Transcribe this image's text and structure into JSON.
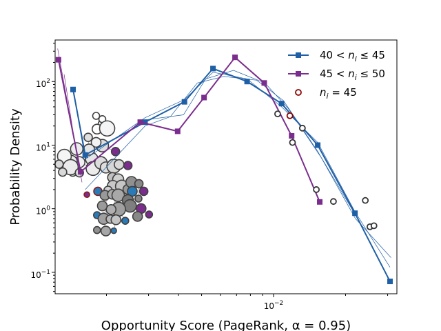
{
  "chart_data": {
    "type": "line",
    "xlabel": "Opportunity Score (PageRank, α = 0.95)",
    "ylabel": "Probability Density",
    "xscale": "log",
    "yscale": "log",
    "xlim": [
      0.00122,
      0.0328
    ],
    "ylim": [
      0.046,
      450
    ],
    "x_tick_labels": [
      {
        "value": 0.01,
        "base": "10",
        "exp": "−2"
      }
    ],
    "y_tick_labels": [
      {
        "value": 0.1,
        "base": "10",
        "exp": "−1"
      },
      {
        "value": 1,
        "base": "10",
        "exp": "0"
      },
      {
        "value": 10,
        "base": "10",
        "exp": "1"
      },
      {
        "value": 100,
        "base": "10",
        "exp": "2"
      }
    ],
    "legend_position": "top-right",
    "grid": false,
    "series": [
      {
        "name": "40 < n_i ≤ 45",
        "legend_parts": {
          "pre": "40 < ",
          "var": "n",
          "sub": "i",
          "post": " ≤ 45"
        },
        "color": "#1f5fa6",
        "marker": "square",
        "points": [
          [
            0.00145,
            75
          ],
          [
            0.00163,
            7
          ],
          [
            0.0029,
            23
          ],
          [
            0.00424,
            48
          ],
          [
            0.00558,
            160
          ],
          [
            0.00775,
            100
          ],
          [
            0.0108,
            45
          ],
          [
            0.0153,
            10
          ],
          [
            0.0219,
            0.85
          ],
          [
            0.0307,
            0.072
          ]
        ]
      },
      {
        "name": "45 < n_i ≤ 50",
        "legend_parts": {
          "pre": "45 < ",
          "var": "n",
          "sub": "i",
          "post": " ≤ 50"
        },
        "color": "#7b2d8e",
        "marker": "square",
        "points": [
          [
            0.00126,
            220
          ],
          [
            0.00156,
            3.8
          ],
          [
            0.00277,
            23
          ],
          [
            0.00397,
            16.5
          ],
          [
            0.00512,
            56
          ],
          [
            0.0069,
            240
          ],
          [
            0.00914,
            95
          ],
          [
            0.0119,
            14
          ],
          [
            0.0156,
            1.28
          ]
        ]
      },
      {
        "name": "n_i = 45",
        "legend_parts": {
          "pre": "",
          "var": "n",
          "sub": "i",
          "post": " = 45"
        },
        "color": "#333333",
        "highlight_color": "#8b0000",
        "marker": "open-circle",
        "points": [
          [
            0.0104,
            31
          ],
          [
            0.0117,
            29
          ],
          [
            0.012,
            11
          ],
          [
            0.0132,
            18.5
          ],
          [
            0.0151,
            2
          ],
          [
            0.0178,
            1.3
          ],
          [
            0.0242,
            1.35
          ],
          [
            0.0253,
            0.52
          ],
          [
            0.0263,
            0.54
          ]
        ]
      }
    ],
    "thin_lines": [
      {
        "color": "#1f5fa6",
        "points": [
          [
            0.00145,
            75
          ],
          [
            0.00163,
            6
          ],
          [
            0.0029,
            27
          ],
          [
            0.00424,
            52
          ],
          [
            0.00558,
            140
          ],
          [
            0.00775,
            110
          ],
          [
            0.0108,
            40
          ],
          [
            0.0153,
            11
          ],
          [
            0.0219,
            0.9
          ],
          [
            0.0307,
            0.12
          ]
        ]
      },
      {
        "color": "#1f5fa6",
        "points": [
          [
            0.00163,
            2
          ],
          [
            0.0029,
            20
          ],
          [
            0.0037,
            28
          ],
          [
            0.0048,
            95
          ],
          [
            0.0062,
            120
          ],
          [
            0.0085,
            105
          ],
          [
            0.011,
            50
          ],
          [
            0.0153,
            8
          ],
          [
            0.022,
            0.7
          ],
          [
            0.031,
            0.17
          ]
        ]
      },
      {
        "color": "#1f5fa6",
        "points": [
          [
            0.0029,
            25
          ],
          [
            0.0042,
            30
          ],
          [
            0.0052,
            110
          ],
          [
            0.0068,
            150
          ],
          [
            0.0092,
            95
          ],
          [
            0.0115,
            38
          ],
          [
            0.016,
            6
          ],
          [
            0.023,
            0.6
          ]
        ]
      },
      {
        "color": "#7b2d8e",
        "points": [
          [
            0.00125,
            330
          ],
          [
            0.00158,
            2.6
          ]
        ]
      },
      {
        "color": "#7b2d8e",
        "points": [
          [
            0.00133,
            130
          ],
          [
            0.00153,
            4.5
          ]
        ]
      }
    ],
    "inset_graph": {
      "nodes": [
        {
          "x": 0.232,
          "y": 0.44,
          "r": 9,
          "fill": "#dedede",
          "stroke": "#404040"
        },
        {
          "x": 0.208,
          "y": 0.48,
          "r": 9,
          "fill": "#e6e6e6",
          "stroke": "#404040"
        },
        {
          "x": 0.218,
          "y": 0.43,
          "r": 7,
          "fill": "#f2f2f2",
          "stroke": "#404040"
        },
        {
          "x": 0.232,
          "y": 0.375,
          "r": 6,
          "fill": "#f5f5f5",
          "stroke": "#404040"
        },
        {
          "x": 0.218,
          "y": 0.35,
          "r": 5,
          "fill": "#ffffff",
          "stroke": "#404040"
        },
        {
          "x": 0.232,
          "y": 0.36,
          "r": 5,
          "fill": "#ffffff",
          "stroke": "#404040"
        },
        {
          "x": 0.22,
          "y": 0.39,
          "r": 7,
          "fill": "#ffffff",
          "stroke": "#404040"
        },
        {
          "x": 0.243,
          "y": 0.388,
          "r": 11,
          "fill": "#f5f5f5",
          "stroke": "#404040"
        },
        {
          "x": 0.2,
          "y": 0.415,
          "r": 6,
          "fill": "#e0e0e0",
          "stroke": "#404040"
        },
        {
          "x": 0.174,
          "y": 0.45,
          "r": 9,
          "fill": "#ececec",
          "stroke": "#404040"
        },
        {
          "x": 0.202,
          "y": 0.452,
          "r": 8,
          "fill": "#e6e6e6",
          "stroke": "#404040"
        },
        {
          "x": 0.18,
          "y": 0.49,
          "r": 8,
          "fill": "#f0f0f0",
          "stroke": "#404040"
        },
        {
          "x": 0.165,
          "y": 0.52,
          "r": 6,
          "fill": "#d9d9d9",
          "stroke": "#404040"
        },
        {
          "x": 0.161,
          "y": 0.488,
          "r": 9,
          "fill": "#ececec",
          "stroke": "#404040"
        },
        {
          "x": 0.146,
          "y": 0.472,
          "r": 10,
          "fill": "#f5f5f5",
          "stroke": "#404040"
        },
        {
          "x": 0.16,
          "y": 0.505,
          "r": 11,
          "fill": "#ebebeb",
          "stroke": "#404040"
        },
        {
          "x": 0.142,
          "y": 0.52,
          "r": 6,
          "fill": "#d9d9d9",
          "stroke": "#404040"
        },
        {
          "x": 0.134,
          "y": 0.496,
          "r": 6,
          "fill": "#d9d9d9",
          "stroke": "#404040"
        },
        {
          "x": 0.18,
          "y": 0.522,
          "r": 6,
          "fill": "#d9d9d9",
          "stroke": "#404040"
        },
        {
          "x": 0.211,
          "y": 0.509,
          "r": 10,
          "fill": "#ececec",
          "stroke": "#404040"
        },
        {
          "x": 0.229,
          "y": 0.492,
          "r": 9,
          "fill": "#dcdcdc",
          "stroke": "#404040"
        },
        {
          "x": 0.24,
          "y": 0.506,
          "r": 8,
          "fill": "#dedede",
          "stroke": "#404040"
        },
        {
          "x": 0.258,
          "y": 0.502,
          "r": 10,
          "fill": "#d6d6d6",
          "stroke": "#404040"
        },
        {
          "x": 0.27,
          "y": 0.497,
          "r": 7,
          "fill": "#d9d9d9",
          "stroke": "#404040"
        },
        {
          "x": 0.262,
          "y": 0.458,
          "r": 6,
          "fill": "#7b2d8e",
          "stroke": "#404040"
        },
        {
          "x": 0.29,
          "y": 0.5,
          "r": 6,
          "fill": "#7b2d8e",
          "stroke": "#404040"
        },
        {
          "x": 0.255,
          "y": 0.536,
          "r": 7,
          "fill": "#c0c0c0",
          "stroke": "#404040"
        },
        {
          "x": 0.268,
          "y": 0.542,
          "r": 8,
          "fill": "#d0d0d0",
          "stroke": "#404040"
        },
        {
          "x": 0.256,
          "y": 0.562,
          "r": 8,
          "fill": "#c8c8c8",
          "stroke": "#404040"
        },
        {
          "x": 0.276,
          "y": 0.563,
          "r": 9,
          "fill": "#c6c6c6",
          "stroke": "#404040"
        },
        {
          "x": 0.245,
          "y": 0.575,
          "r": 6,
          "fill": "#cfcfcf",
          "stroke": "#404040"
        },
        {
          "x": 0.222,
          "y": 0.578,
          "r": 6,
          "fill": "#2a7ab8",
          "stroke": "#8b1a1a"
        },
        {
          "x": 0.238,
          "y": 0.59,
          "r": 7,
          "fill": "#999999",
          "stroke": "#404040"
        },
        {
          "x": 0.255,
          "y": 0.587,
          "r": 7,
          "fill": "#aaaaaa",
          "stroke": "#404040"
        },
        {
          "x": 0.268,
          "y": 0.59,
          "r": 9,
          "fill": "#a8a8a8",
          "stroke": "#404040"
        },
        {
          "x": 0.29,
          "y": 0.572,
          "r": 7,
          "fill": "#999999",
          "stroke": "#404040"
        },
        {
          "x": 0.298,
          "y": 0.55,
          "r": 8,
          "fill": "#909090",
          "stroke": "#404040"
        },
        {
          "x": 0.3,
          "y": 0.578,
          "r": 7,
          "fill": "#2a7ab8",
          "stroke": "#404040"
        },
        {
          "x": 0.315,
          "y": 0.555,
          "r": 6,
          "fill": "#888888",
          "stroke": "#404040"
        },
        {
          "x": 0.326,
          "y": 0.578,
          "r": 6,
          "fill": "#7b2d8e",
          "stroke": "#404040"
        },
        {
          "x": 0.314,
          "y": 0.6,
          "r": 5,
          "fill": "#888888",
          "stroke": "#404040"
        },
        {
          "x": 0.29,
          "y": 0.605,
          "r": 8,
          "fill": "#777777",
          "stroke": "#404040"
        },
        {
          "x": 0.295,
          "y": 0.622,
          "r": 9,
          "fill": "#7f7f7f",
          "stroke": "#404040"
        },
        {
          "x": 0.32,
          "y": 0.63,
          "r": 7,
          "fill": "#7b2d8e",
          "stroke": "#404040"
        },
        {
          "x": 0.338,
          "y": 0.648,
          "r": 5,
          "fill": "#7b2d8e",
          "stroke": "#404040"
        },
        {
          "x": 0.312,
          "y": 0.654,
          "r": 7,
          "fill": "#888888",
          "stroke": "#404040"
        },
        {
          "x": 0.269,
          "y": 0.632,
          "r": 10,
          "fill": "#a0a0a0",
          "stroke": "#404040"
        },
        {
          "x": 0.252,
          "y": 0.633,
          "r": 7,
          "fill": "#b0b0b0",
          "stroke": "#404040"
        },
        {
          "x": 0.232,
          "y": 0.622,
          "r": 7,
          "fill": "#9a9a9a",
          "stroke": "#404040"
        },
        {
          "x": 0.22,
          "y": 0.65,
          "r": 5,
          "fill": "#2a7ab8",
          "stroke": "#404040"
        },
        {
          "x": 0.235,
          "y": 0.661,
          "r": 8,
          "fill": "#a0a0a0",
          "stroke": "#404040"
        },
        {
          "x": 0.25,
          "y": 0.662,
          "r": 6,
          "fill": "#b8b8b8",
          "stroke": "#404040"
        },
        {
          "x": 0.263,
          "y": 0.664,
          "r": 7,
          "fill": "#c4c4c4",
          "stroke": "#404040"
        },
        {
          "x": 0.284,
          "y": 0.667,
          "r": 5,
          "fill": "#2a7ab8",
          "stroke": "#404040"
        },
        {
          "x": 0.22,
          "y": 0.695,
          "r": 5,
          "fill": "#909090",
          "stroke": "#404040"
        },
        {
          "x": 0.24,
          "y": 0.698,
          "r": 7,
          "fill": "#a6a6a6",
          "stroke": "#404040"
        },
        {
          "x": 0.258,
          "y": 0.697,
          "r": 4,
          "fill": "#2a7ab8",
          "stroke": "#404040"
        },
        {
          "x": 0.197,
          "y": 0.588,
          "r": 4,
          "fill": "#7b2d8e",
          "stroke": "#8b1a1a"
        }
      ]
    }
  }
}
